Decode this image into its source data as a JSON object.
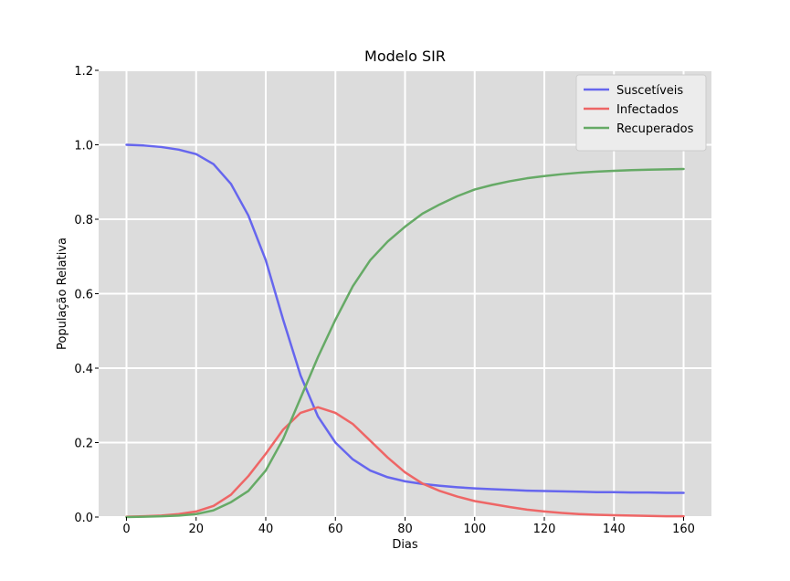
{
  "chart_data": {
    "type": "line",
    "title": "Modelo SIR",
    "xlabel": "Dias",
    "ylabel": "População Relativa",
    "xlim": [
      -8,
      168
    ],
    "ylim": [
      0,
      1.2
    ],
    "xticks": [
      0,
      20,
      40,
      60,
      80,
      100,
      120,
      140,
      160
    ],
    "xtick_labels": [
      "0",
      "20",
      "40",
      "60",
      "80",
      "100",
      "120",
      "140",
      "160"
    ],
    "yticks": [
      0,
      0.2,
      0.4,
      0.6,
      0.8,
      1.0,
      1.2
    ],
    "ytick_labels": [
      "0.0",
      "0.2",
      "0.4",
      "0.6",
      "0.8",
      "1.0",
      "1.2"
    ],
    "grid": true,
    "legend_position": "top-right",
    "background": "#dcdcdc",
    "x": [
      0,
      5,
      10,
      15,
      20,
      25,
      30,
      35,
      40,
      45,
      50,
      55,
      60,
      65,
      70,
      75,
      80,
      85,
      90,
      95,
      100,
      105,
      110,
      115,
      120,
      125,
      130,
      135,
      140,
      145,
      150,
      155,
      160
    ],
    "series": [
      {
        "name": "Suscetíveis",
        "color": "#6666ee",
        "values": [
          1.0,
          0.998,
          0.994,
          0.987,
          0.975,
          0.948,
          0.895,
          0.81,
          0.69,
          0.53,
          0.38,
          0.27,
          0.2,
          0.155,
          0.125,
          0.107,
          0.096,
          0.089,
          0.084,
          0.08,
          0.077,
          0.075,
          0.073,
          0.071,
          0.07,
          0.069,
          0.068,
          0.067,
          0.067,
          0.066,
          0.066,
          0.065,
          0.065
        ]
      },
      {
        "name": "Infectados",
        "color": "#ee6666",
        "values": [
          0.001,
          0.002,
          0.004,
          0.008,
          0.015,
          0.03,
          0.06,
          0.11,
          0.17,
          0.235,
          0.28,
          0.295,
          0.28,
          0.25,
          0.205,
          0.16,
          0.12,
          0.09,
          0.07,
          0.055,
          0.043,
          0.035,
          0.027,
          0.02,
          0.015,
          0.011,
          0.008,
          0.006,
          0.005,
          0.004,
          0.003,
          0.002,
          0.002
        ]
      },
      {
        "name": "Recuperados",
        "color": "#66aa66",
        "values": [
          0.0,
          0.001,
          0.002,
          0.004,
          0.008,
          0.018,
          0.04,
          0.07,
          0.125,
          0.21,
          0.32,
          0.43,
          0.53,
          0.62,
          0.69,
          0.74,
          0.78,
          0.815,
          0.84,
          0.862,
          0.88,
          0.892,
          0.902,
          0.91,
          0.916,
          0.921,
          0.925,
          0.928,
          0.93,
          0.932,
          0.933,
          0.934,
          0.935
        ]
      }
    ]
  }
}
